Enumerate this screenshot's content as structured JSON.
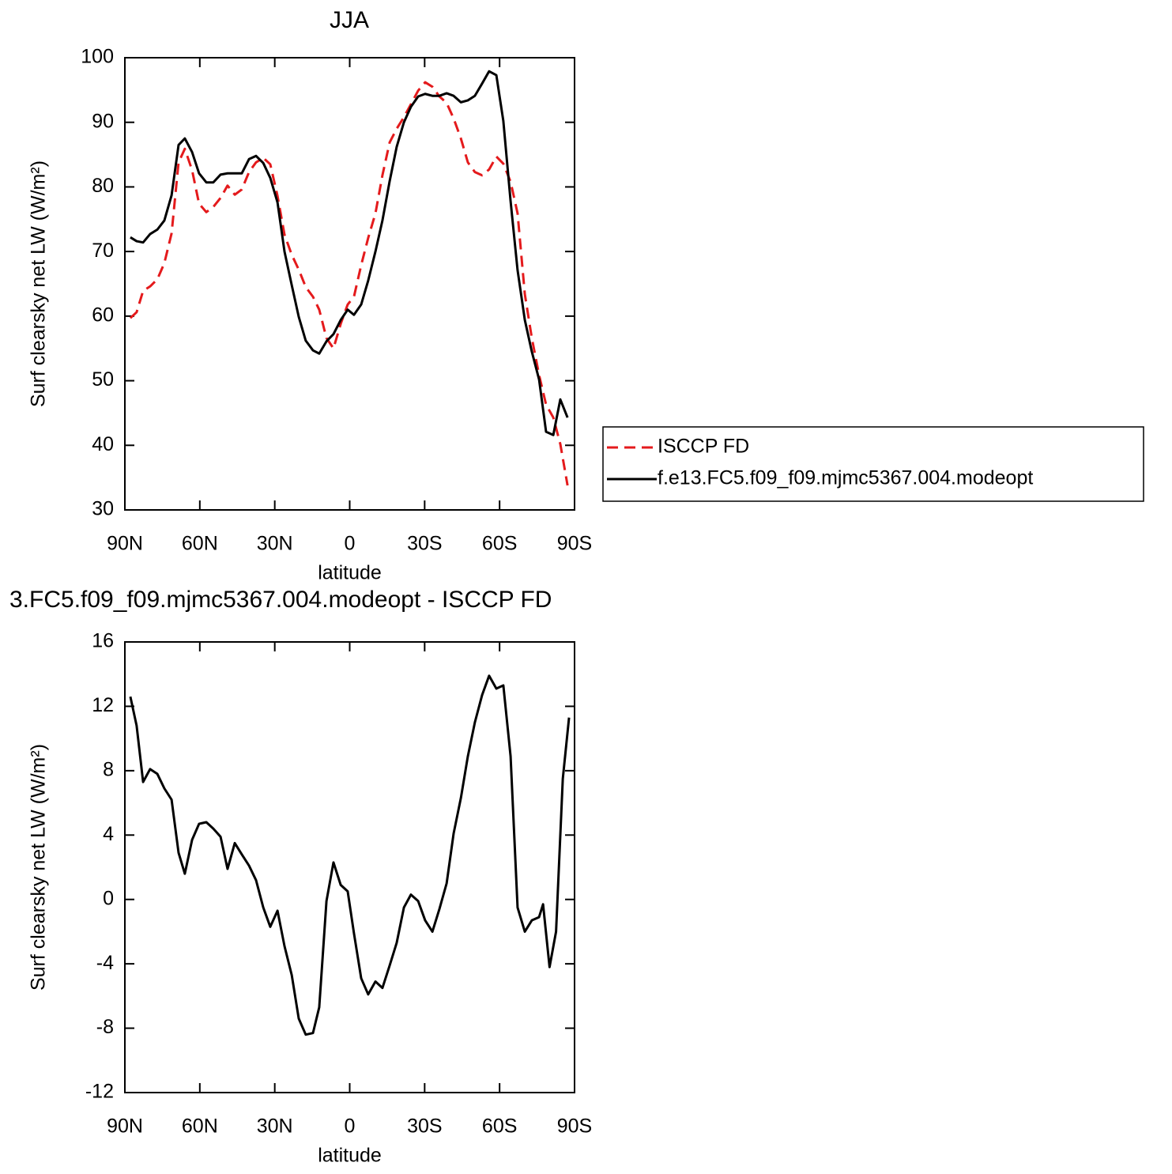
{
  "chart_data": [
    {
      "type": "line",
      "title": "JJA",
      "xlabel": "latitude",
      "ylabel": "Surf clearsky net LW (W/m²)",
      "xlim": [
        90,
        -90
      ],
      "xticks": [
        {
          "value": 90,
          "label": "90N"
        },
        {
          "value": 60,
          "label": "60N"
        },
        {
          "value": 30,
          "label": "30N"
        },
        0,
        {
          "value": -30,
          "label": "30S"
        },
        {
          "value": -60,
          "label": "60S"
        },
        {
          "value": -90,
          "label": "90S"
        }
      ],
      "ylim": [
        30,
        100
      ],
      "yticks": [
        30,
        40,
        50,
        60,
        70,
        80,
        90,
        100
      ],
      "legend": "right",
      "x": [
        87.8,
        85.3,
        82.7,
        79.9,
        77.0,
        74.2,
        71.3,
        68.5,
        66.0,
        63.1,
        60.3,
        57.4,
        54.6,
        51.7,
        48.9,
        46.0,
        43.2,
        40.3,
        37.5,
        34.6,
        31.8,
        28.9,
        26.1,
        23.2,
        20.4,
        17.6,
        14.7,
        12.2,
        9.3,
        6.5,
        3.6,
        0.8,
        -1.7,
        -4.6,
        -7.4,
        -10.3,
        -13.1,
        -16.0,
        -18.8,
        -21.7,
        -24.5,
        -27.4,
        -30.2,
        -33.1,
        -35.9,
        -38.8,
        -41.6,
        -44.5,
        -47.3,
        -50.1,
        -53.0,
        -55.8,
        -58.7,
        -61.5,
        -64.4,
        -67.2,
        -70.1,
        -72.9,
        -75.8,
        -78.6,
        -81.5,
        -84.3,
        -87.2
      ],
      "series": [
        {
          "name": "ISCCP FD",
          "color": "#e41a1c",
          "dash": "dashed",
          "values": [
            59.7,
            60.6,
            63.9,
            64.6,
            65.7,
            68.2,
            72.8,
            83.8,
            85.9,
            82.6,
            77.4,
            76.1,
            76.9,
            78.3,
            80.2,
            78.8,
            79.6,
            82.3,
            83.8,
            84.5,
            83.5,
            78.6,
            72.6,
            69.5,
            67.2,
            64.5,
            63.0,
            61.0,
            56.6,
            55.0,
            58.8,
            61.8,
            63.0,
            67.9,
            72.1,
            75.9,
            81.8,
            86.9,
            89.0,
            90.8,
            92.8,
            94.9,
            96.2,
            95.5,
            94.0,
            93.0,
            90.6,
            87.5,
            83.8,
            82.3,
            81.8,
            82.7,
            84.7,
            83.6,
            80.8,
            75.9,
            63.4,
            56.6,
            50.9,
            46.3,
            44.3,
            40.2,
            33.8
          ]
        },
        {
          "name": "f.e13.FC5.f09_f09.mjmc5367.004.modeopt",
          "color": "#000000",
          "dash": "solid",
          "values": [
            72.2,
            71.6,
            71.4,
            72.7,
            73.4,
            74.8,
            78.7,
            86.5,
            87.5,
            85.4,
            82.1,
            80.7,
            80.7,
            81.9,
            82.1,
            82.1,
            82.1,
            84.3,
            84.8,
            83.7,
            81.4,
            77.6,
            70.0,
            64.8,
            59.9,
            56.2,
            54.7,
            54.2,
            56.1,
            57.2,
            59.4,
            61.0,
            60.2,
            61.8,
            65.5,
            70.0,
            74.8,
            80.9,
            86.2,
            90.0,
            92.4,
            94.0,
            94.4,
            94.1,
            94.1,
            94.5,
            94.1,
            93.1,
            93.4,
            94.1,
            96.0,
            97.9,
            97.3,
            90.2,
            77.8,
            67.1,
            59.4,
            54.5,
            50.2,
            42.1,
            41.6,
            47.1,
            44.3
          ]
        }
      ]
    },
    {
      "type": "line",
      "title": "3.FC5.f09_f09.mjmc5367.004.modeopt - ISCCP FD",
      "xlabel": "latitude",
      "ylabel": "Surf clearsky net LW (W/m²)",
      "xlim": [
        90,
        -90
      ],
      "xticks": [
        {
          "value": 90,
          "label": "90N"
        },
        {
          "value": 60,
          "label": "60N"
        },
        {
          "value": 30,
          "label": "30N"
        },
        0,
        {
          "value": -30,
          "label": "30S"
        },
        {
          "value": -60,
          "label": "60S"
        },
        {
          "value": -90,
          "label": "90S"
        }
      ],
      "ylim": [
        -12,
        16
      ],
      "yticks": [
        -12,
        -8,
        -4,
        0,
        4,
        8,
        12,
        16
      ],
      "x": [
        87.8,
        85.3,
        82.7,
        79.9,
        77.0,
        74.2,
        71.3,
        68.5,
        66.0,
        63.1,
        60.3,
        57.4,
        54.6,
        51.7,
        48.9,
        46.0,
        43.2,
        40.3,
        37.5,
        34.6,
        31.8,
        28.9,
        26.1,
        23.2,
        20.4,
        17.6,
        14.7,
        12.2,
        9.3,
        6.5,
        3.6,
        0.8,
        -1.7,
        -4.6,
        -7.4,
        -10.3,
        -13.1,
        -16.0,
        -18.8,
        -21.7,
        -24.5,
        -27.4,
        -30.2,
        -33.1,
        -35.9,
        -38.8,
        -41.6,
        -44.5,
        -47.3,
        -50.1,
        -53.0,
        -55.8,
        -58.7,
        -61.5,
        -64.4,
        -67.2,
        -70.1,
        -72.9,
        -75.8,
        -77.4,
        -80.0,
        -82.6,
        -85.3,
        -87.8
      ],
      "series": [
        {
          "color": "#000000",
          "dash": "solid",
          "values": [
            12.6,
            10.8,
            7.3,
            8.1,
            7.8,
            6.9,
            6.2,
            2.9,
            1.6,
            3.7,
            4.7,
            4.8,
            4.4,
            3.9,
            1.9,
            3.5,
            2.8,
            2.1,
            1.2,
            -0.5,
            -1.7,
            -0.7,
            -2.9,
            -4.7,
            -7.4,
            -8.4,
            -8.3,
            -6.7,
            -0.1,
            2.3,
            0.9,
            0.5,
            -2.1,
            -4.9,
            -5.9,
            -5.1,
            -5.5,
            -4.1,
            -2.7,
            -0.5,
            0.3,
            -0.1,
            -1.3,
            -2.0,
            -0.6,
            1.0,
            4.1,
            6.3,
            8.9,
            11.0,
            12.7,
            13.9,
            13.1,
            13.3,
            8.9,
            -0.5,
            -2.0,
            -1.3,
            -1.1,
            -0.3,
            -4.2,
            -2.0,
            7.5,
            11.3
          ]
        }
      ]
    }
  ]
}
